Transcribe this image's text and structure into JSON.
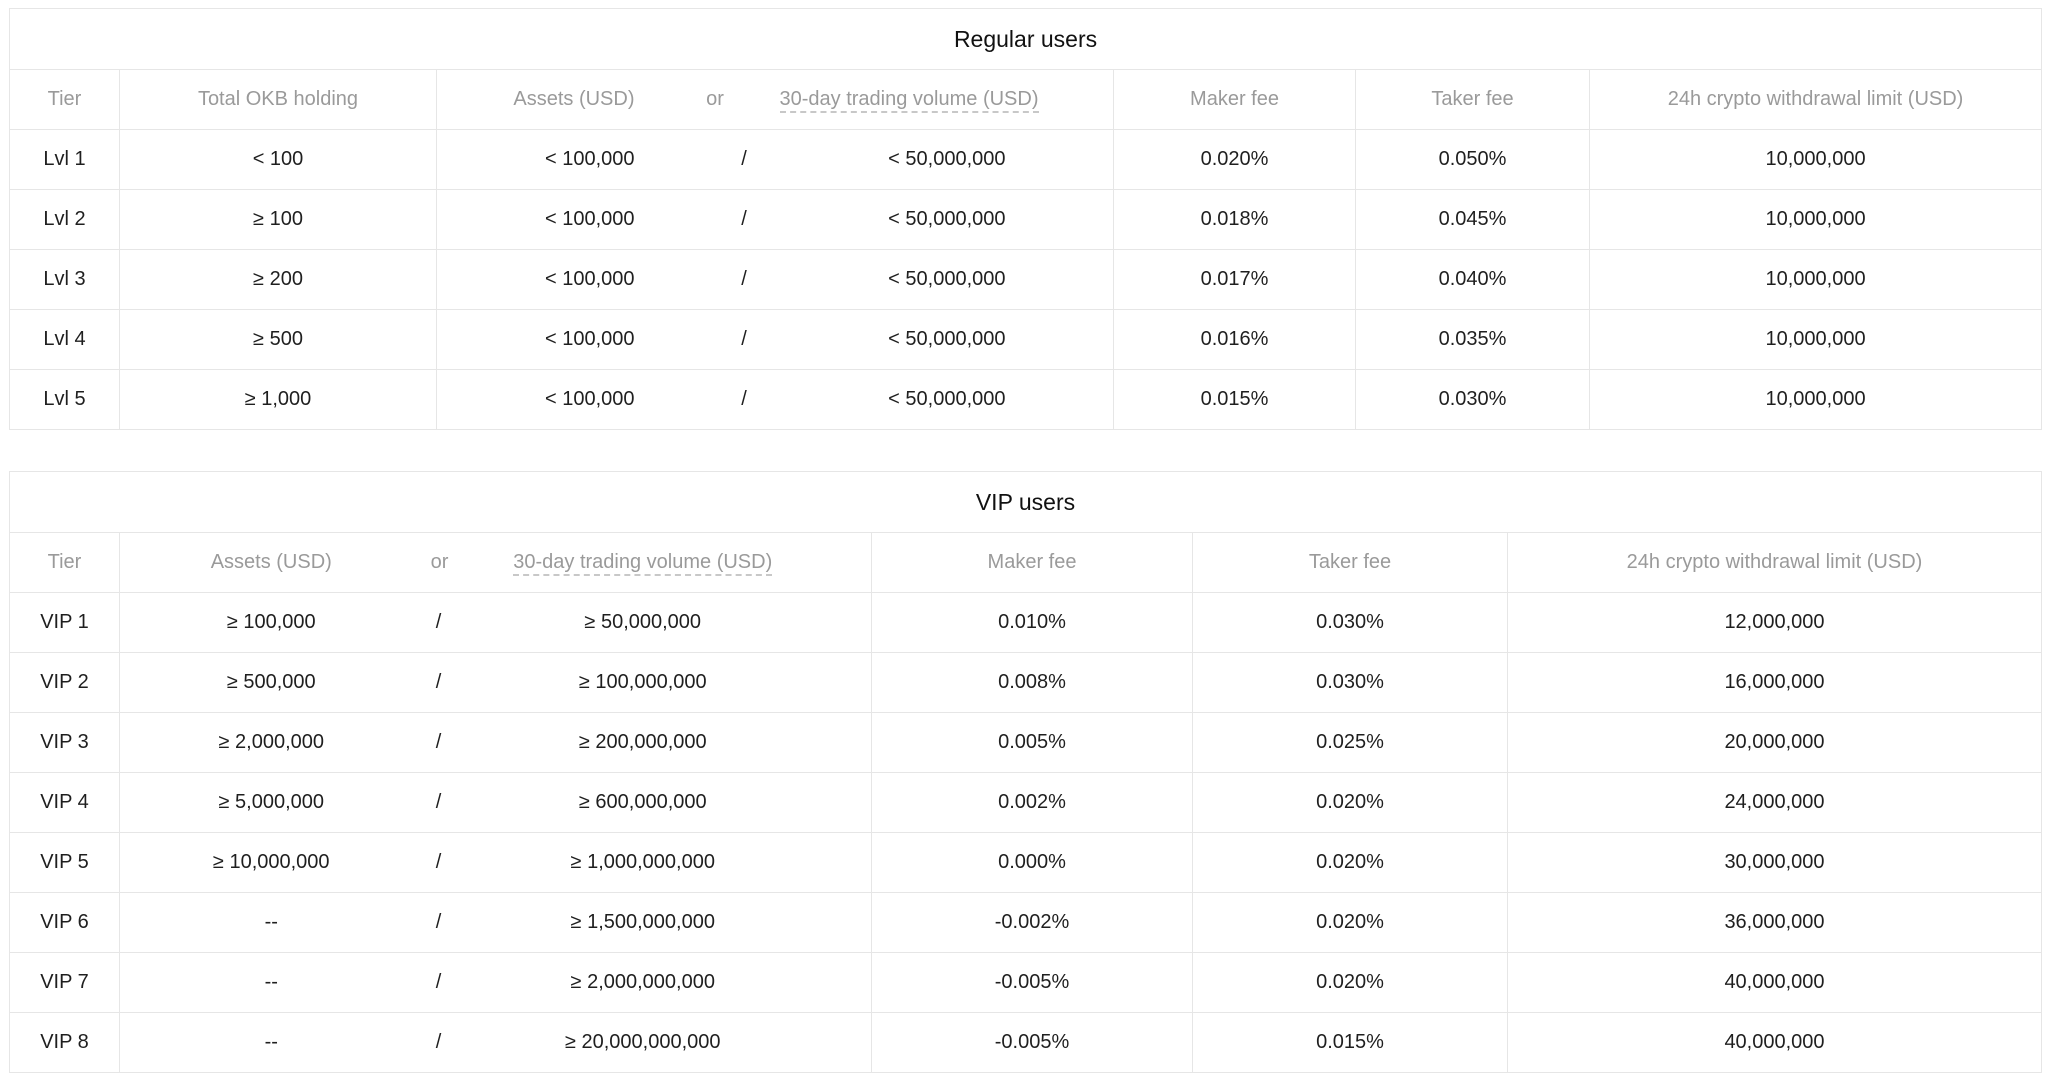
{
  "regular": {
    "title": "Regular users",
    "headers": {
      "tier": "Tier",
      "okb": "Total OKB holding",
      "assets": "Assets (USD)",
      "or": "or",
      "volume": "30-day trading volume (USD)",
      "maker": "Maker fee",
      "taker": "Taker fee",
      "limit": "24h crypto withdrawal limit (USD)"
    },
    "rows": [
      {
        "tier": "Lvl 1",
        "okb": "< 100",
        "assets": "< 100,000",
        "sep": "/",
        "volume": "< 50,000,000",
        "maker": "0.020%",
        "taker": "0.050%",
        "limit": "10,000,000"
      },
      {
        "tier": "Lvl 2",
        "okb": "≥ 100",
        "assets": "< 100,000",
        "sep": "/",
        "volume": "< 50,000,000",
        "maker": "0.018%",
        "taker": "0.045%",
        "limit": "10,000,000"
      },
      {
        "tier": "Lvl 3",
        "okb": "≥ 200",
        "assets": "< 100,000",
        "sep": "/",
        "volume": "< 50,000,000",
        "maker": "0.017%",
        "taker": "0.040%",
        "limit": "10,000,000"
      },
      {
        "tier": "Lvl 4",
        "okb": "≥ 500",
        "assets": "< 100,000",
        "sep": "/",
        "volume": "< 50,000,000",
        "maker": "0.016%",
        "taker": "0.035%",
        "limit": "10,000,000"
      },
      {
        "tier": "Lvl 5",
        "okb": "≥ 1,000",
        "assets": "< 100,000",
        "sep": "/",
        "volume": "< 50,000,000",
        "maker": "0.015%",
        "taker": "0.030%",
        "limit": "10,000,000"
      }
    ]
  },
  "vip": {
    "title": "VIP users",
    "headers": {
      "tier": "Tier",
      "assets": "Assets (USD)",
      "or": "or",
      "volume": "30-day trading volume (USD)",
      "maker": "Maker fee",
      "taker": "Taker fee",
      "limit": "24h crypto withdrawal limit (USD)"
    },
    "rows": [
      {
        "tier": "VIP 1",
        "assets": "≥ 100,000",
        "sep": "/",
        "volume": "≥ 50,000,000",
        "maker": "0.010%",
        "taker": "0.030%",
        "limit": "12,000,000"
      },
      {
        "tier": "VIP 2",
        "assets": "≥ 500,000",
        "sep": "/",
        "volume": "≥ 100,000,000",
        "maker": "0.008%",
        "taker": "0.030%",
        "limit": "16,000,000"
      },
      {
        "tier": "VIP 3",
        "assets": "≥ 2,000,000",
        "sep": "/",
        "volume": "≥ 200,000,000",
        "maker": "0.005%",
        "taker": "0.025%",
        "limit": "20,000,000"
      },
      {
        "tier": "VIP 4",
        "assets": "≥ 5,000,000",
        "sep": "/",
        "volume": "≥ 600,000,000",
        "maker": "0.002%",
        "taker": "0.020%",
        "limit": "24,000,000"
      },
      {
        "tier": "VIP 5",
        "assets": "≥ 10,000,000",
        "sep": "/",
        "volume": "≥ 1,000,000,000",
        "maker": "0.000%",
        "taker": "0.020%",
        "limit": "30,000,000"
      },
      {
        "tier": "VIP 6",
        "assets": "--",
        "sep": "/",
        "volume": "≥ 1,500,000,000",
        "maker": "-0.002%",
        "taker": "0.020%",
        "limit": "36,000,000"
      },
      {
        "tier": "VIP 7",
        "assets": "--",
        "sep": "/",
        "volume": "≥ 2,000,000,000",
        "maker": "-0.005%",
        "taker": "0.020%",
        "limit": "40,000,000"
      },
      {
        "tier": "VIP 8",
        "assets": "--",
        "sep": "/",
        "volume": "≥ 20,000,000,000",
        "maker": "-0.005%",
        "taker": "0.015%",
        "limit": "40,000,000"
      }
    ]
  }
}
